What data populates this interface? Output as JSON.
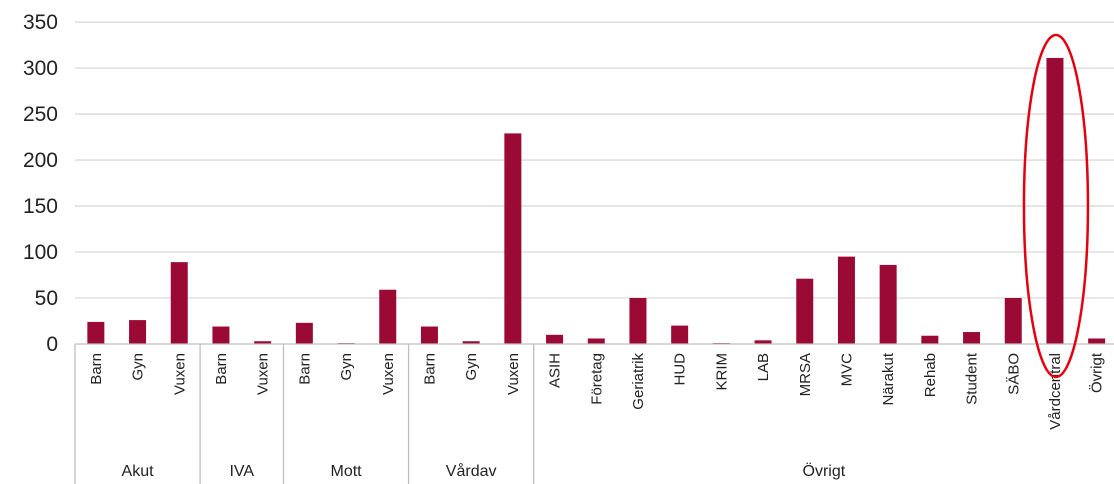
{
  "colors": {
    "bar": "#9b0a34",
    "gridline": "#d9d9d9",
    "axis": "#bfbfbf",
    "highlight": "#e3000f",
    "text": "#222222"
  },
  "chart_data": {
    "type": "bar",
    "title": "",
    "xlabel": "",
    "ylabel": "",
    "ylim": [
      0,
      350
    ],
    "yticks": [
      0,
      50,
      100,
      150,
      200,
      250,
      300,
      350
    ],
    "grid": true,
    "legend": "none",
    "groups": [
      {
        "name": "Akut",
        "categories": [
          "Barn",
          "Gyn",
          "Vuxen"
        ]
      },
      {
        "name": "IVA",
        "categories": [
          "Barn",
          "Vuxen"
        ]
      },
      {
        "name": "Mott",
        "categories": [
          "Barn",
          "Gyn",
          "Vuxen"
        ]
      },
      {
        "name": "Vårdav",
        "categories": [
          "Barn",
          "Gyn",
          "Vuxen"
        ]
      },
      {
        "name": "Övrigt",
        "categories": [
          "ASIH",
          "Företag",
          "Geriatrik",
          "HUD",
          "KRIM",
          "LAB",
          "MRSA",
          "MVC",
          "Närakut",
          "Rehab",
          "Student",
          "SÄBO",
          "Vårdcentral",
          "Övrigt"
        ]
      }
    ],
    "categories": [
      "Barn",
      "Gyn",
      "Vuxen",
      "Barn",
      "Vuxen",
      "Barn",
      "Gyn",
      "Vuxen",
      "Barn",
      "Gyn",
      "Vuxen",
      "ASIH",
      "Företag",
      "Geriatrik",
      "HUD",
      "KRIM",
      "LAB",
      "MRSA",
      "MVC",
      "Närakut",
      "Rehab",
      "Student",
      "SÄBO",
      "Vårdcentral",
      "Övrigt"
    ],
    "series": [
      {
        "values": [
          24,
          26,
          89,
          19,
          3,
          23,
          1,
          59,
          19,
          3,
          229,
          10,
          6,
          50,
          20,
          1,
          4,
          71,
          95,
          86,
          9,
          13,
          50,
          311,
          6
        ]
      }
    ],
    "annotations": [
      {
        "type": "ellipse",
        "category": "Vårdcentral"
      }
    ]
  }
}
